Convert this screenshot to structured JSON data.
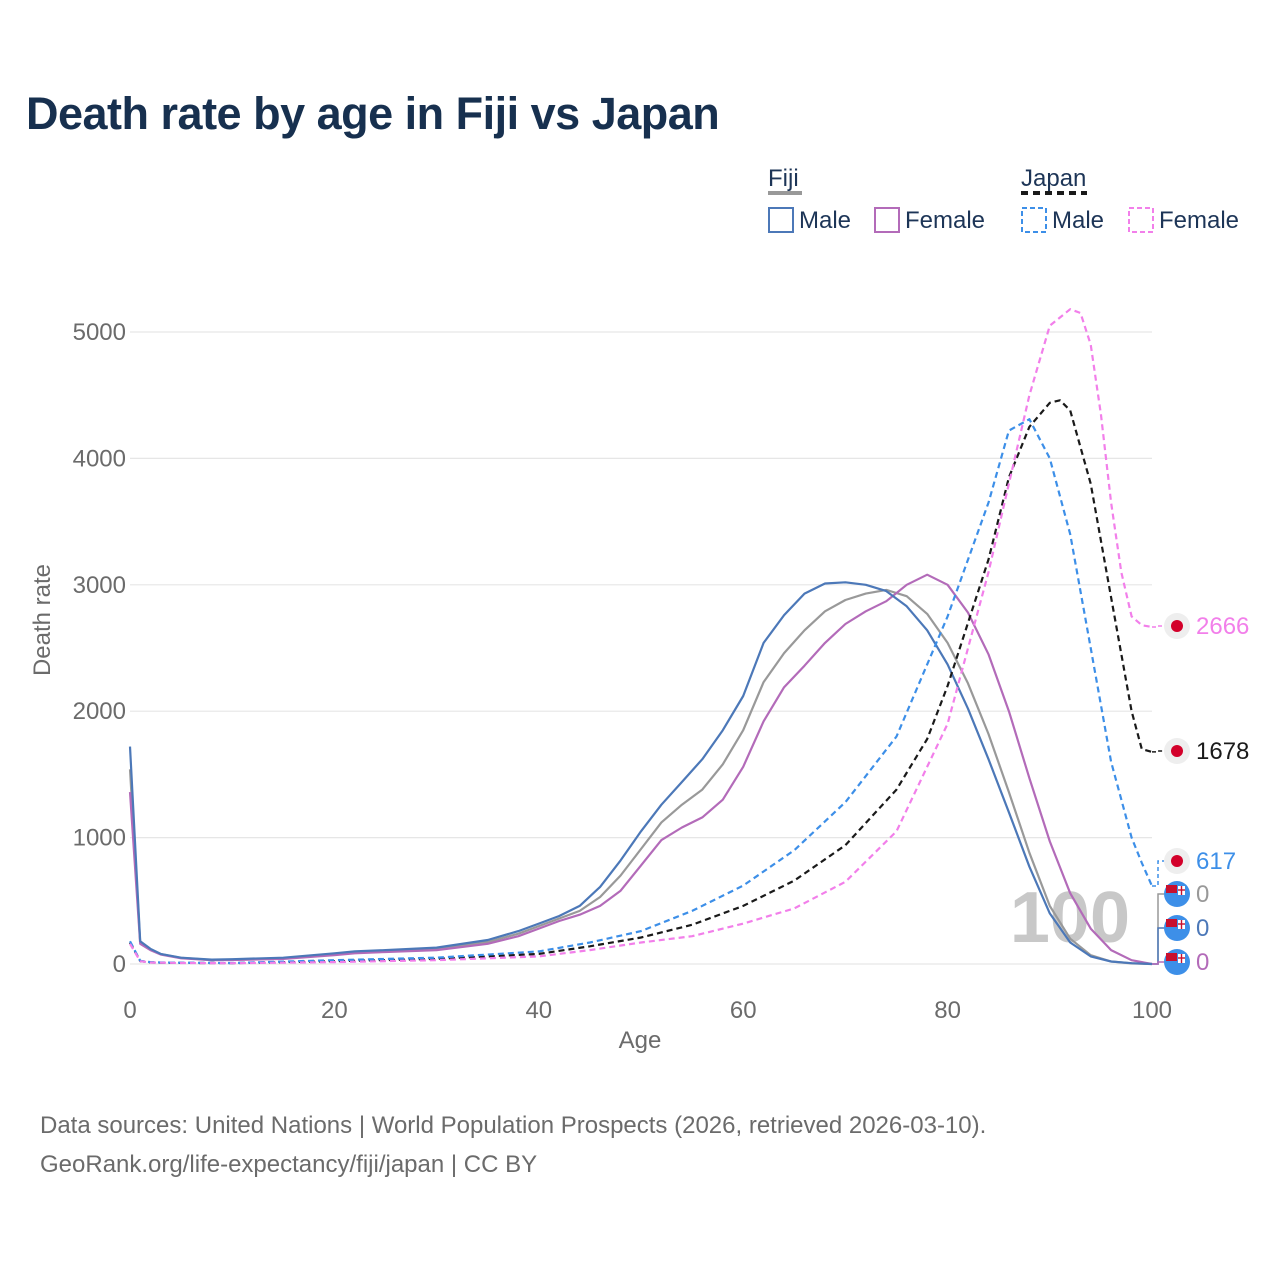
{
  "title": "Death rate by age in Fiji vs Japan",
  "source_line1": "Data sources: United Nations | World Population Prospects (2026, retrieved 2026-03-10).",
  "source_line2": "GeoRank.org/life-expectancy/fiji/japan | CC BY",
  "colors": {
    "fiji_male": "#4c78b8",
    "fiji_female": "#b36bb9",
    "fiji_total": "#999999",
    "japan_male": "#3d8fe8",
    "japan_female": "#f27fea",
    "japan_total": "#1a1a1a",
    "title": "#17304f",
    "axis_text": "#6b6b6b",
    "grid": "#e6e6e6"
  },
  "chart_data": {
    "type": "line",
    "title": "Death rate by age in Fiji vs Japan",
    "xlabel": "Age",
    "ylabel": "Death rate",
    "xlim": [
      0,
      100
    ],
    "ylim": [
      0,
      5200
    ],
    "xticks": [
      0,
      20,
      40,
      60,
      80,
      100
    ],
    "yticks": [
      0,
      1000,
      2000,
      3000,
      4000,
      5000
    ],
    "grid": "horizontal",
    "year_watermark": "100",
    "legend": {
      "groups": [
        {
          "country": "Fiji",
          "entries": [
            "Male",
            "Female"
          ]
        },
        {
          "country": "Japan",
          "entries": [
            "Male",
            "Female"
          ]
        }
      ]
    },
    "series": [
      {
        "name": "Fiji Male",
        "key": "fiji_male",
        "dash": false,
        "x": [
          0,
          1,
          2,
          3,
          5,
          8,
          10,
          15,
          20,
          22,
          25,
          30,
          35,
          38,
          40,
          42,
          44,
          46,
          48,
          50,
          52,
          54,
          56,
          58,
          60,
          62,
          64,
          66,
          68,
          70,
          72,
          74,
          76,
          78,
          80,
          82,
          84,
          86,
          88,
          90,
          92,
          94,
          96,
          98,
          100
        ],
        "y": [
          1720,
          180,
          120,
          80,
          50,
          35,
          38,
          50,
          85,
          100,
          110,
          130,
          190,
          260,
          320,
          380,
          460,
          610,
          820,
          1050,
          1260,
          1440,
          1620,
          1850,
          2120,
          2540,
          2760,
          2930,
          3010,
          3020,
          3000,
          2950,
          2830,
          2640,
          2370,
          2020,
          1620,
          1200,
          770,
          400,
          170,
          60,
          20,
          6,
          0
        ],
        "end_label": "0"
      },
      {
        "name": "Fiji Female",
        "key": "fiji_female",
        "dash": false,
        "x": [
          0,
          1,
          2,
          3,
          5,
          8,
          10,
          15,
          20,
          22,
          25,
          30,
          35,
          38,
          40,
          42,
          44,
          46,
          48,
          50,
          52,
          54,
          56,
          58,
          60,
          62,
          64,
          66,
          68,
          70,
          72,
          74,
          76,
          78,
          80,
          82,
          84,
          86,
          88,
          90,
          92,
          94,
          96,
          98,
          100
        ],
        "y": [
          1360,
          160,
          110,
          75,
          45,
          30,
          32,
          40,
          70,
          85,
          95,
          110,
          160,
          220,
          280,
          340,
          390,
          460,
          580,
          780,
          980,
          1080,
          1160,
          1300,
          1560,
          1920,
          2190,
          2360,
          2540,
          2690,
          2790,
          2870,
          3000,
          3080,
          3000,
          2780,
          2450,
          2000,
          1470,
          970,
          560,
          280,
          110,
          30,
          0
        ],
        "end_label": "0"
      },
      {
        "name": "Fiji Total",
        "key": "fiji_total",
        "dash": false,
        "x": [
          0,
          1,
          2,
          3,
          5,
          8,
          10,
          15,
          20,
          22,
          25,
          30,
          35,
          38,
          40,
          42,
          44,
          46,
          48,
          50,
          52,
          54,
          56,
          58,
          60,
          62,
          64,
          66,
          68,
          70,
          72,
          74,
          76,
          78,
          80,
          82,
          84,
          86,
          88,
          90,
          92,
          94,
          96,
          98,
          100
        ],
        "y": [
          1540,
          170,
          115,
          78,
          48,
          32,
          35,
          45,
          78,
          92,
          102,
          120,
          175,
          240,
          300,
          360,
          420,
          530,
          700,
          910,
          1120,
          1260,
          1380,
          1580,
          1850,
          2230,
          2460,
          2640,
          2790,
          2880,
          2930,
          2960,
          2910,
          2770,
          2540,
          2220,
          1820,
          1360,
          880,
          460,
          200,
          70,
          20,
          5,
          0
        ],
        "end_label": "0"
      },
      {
        "name": "Japan Male",
        "key": "japan_male",
        "dash": true,
        "x": [
          0,
          1,
          2,
          3,
          5,
          10,
          20,
          30,
          40,
          45,
          50,
          55,
          60,
          65,
          70,
          75,
          80,
          84,
          86,
          88,
          90,
          92,
          94,
          96,
          98,
          99,
          100
        ],
        "y": [
          180,
          25,
          15,
          12,
          10,
          8,
          30,
          50,
          100,
          170,
          260,
          420,
          620,
          900,
          1280,
          1800,
          2750,
          3650,
          4220,
          4310,
          4000,
          3400,
          2500,
          1600,
          1000,
          800,
          617
        ],
        "end_label": "617"
      },
      {
        "name": "Japan Female",
        "key": "japan_female",
        "dash": true,
        "x": [
          0,
          1,
          2,
          3,
          5,
          10,
          20,
          30,
          40,
          45,
          50,
          55,
          60,
          65,
          70,
          75,
          80,
          84,
          86,
          88,
          90,
          92,
          93,
          94,
          95,
          96,
          97,
          98,
          99,
          100
        ],
        "y": [
          160,
          22,
          12,
          10,
          8,
          6,
          15,
          30,
          60,
          110,
          170,
          220,
          320,
          440,
          650,
          1050,
          1900,
          3100,
          3800,
          4500,
          5050,
          5180,
          5150,
          4900,
          4350,
          3650,
          3100,
          2750,
          2680,
          2666
        ],
        "end_label": "2666"
      },
      {
        "name": "Japan Total",
        "key": "japan_total",
        "dash": true,
        "x": [
          0,
          1,
          2,
          3,
          5,
          10,
          20,
          30,
          40,
          45,
          50,
          55,
          60,
          65,
          70,
          75,
          78,
          80,
          84,
          86,
          88,
          90,
          91,
          92,
          94,
          96,
          98,
          99,
          100
        ],
        "y": [
          170,
          23,
          13,
          11,
          9,
          7,
          22,
          40,
          80,
          140,
          210,
          310,
          460,
          660,
          940,
          1380,
          1780,
          2200,
          3200,
          3850,
          4250,
          4440,
          4460,
          4380,
          3800,
          2900,
          2000,
          1700,
          1678
        ],
        "end_label": "1678"
      }
    ]
  }
}
